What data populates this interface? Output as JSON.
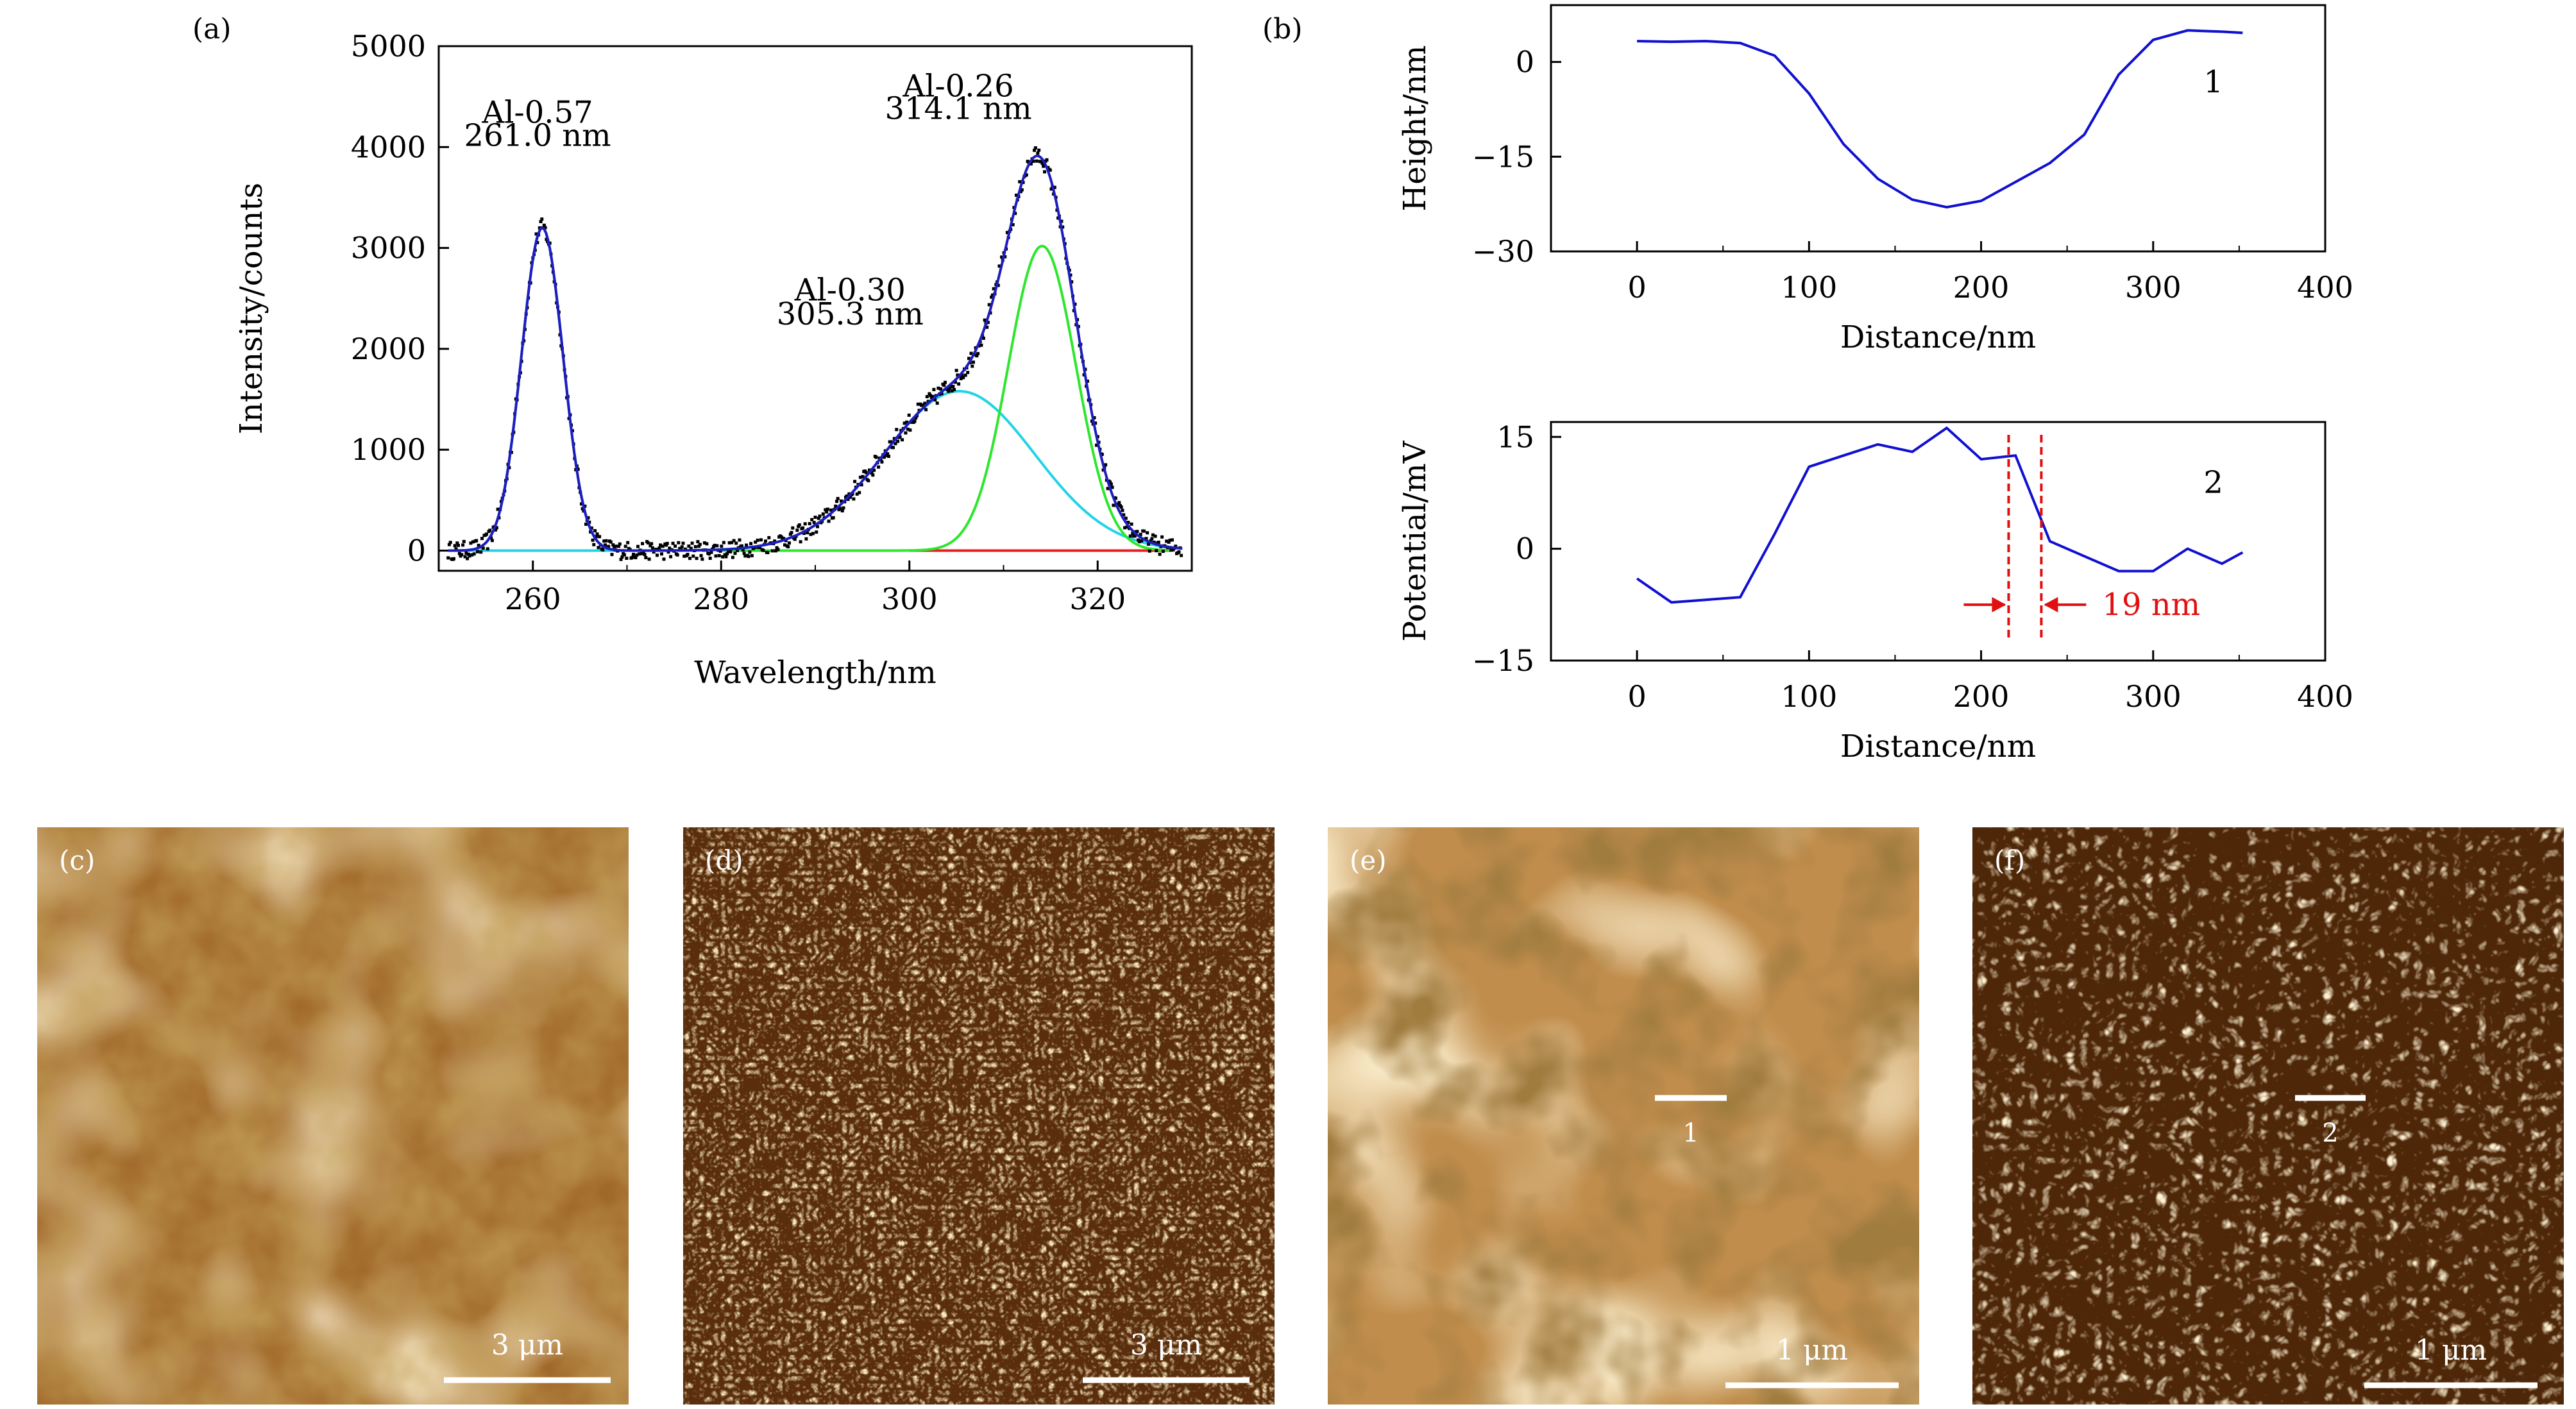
{
  "chart_data": [
    {
      "panel": "(a)",
      "type": "line",
      "xlabel": "Wavelength/nm",
      "ylabel": "Intensity/counts",
      "xlim": [
        250,
        330
      ],
      "ylim": [
        -200,
        5000
      ],
      "xticks": [
        260,
        280,
        300,
        320
      ],
      "yticks": [
        0,
        1000,
        2000,
        3000,
        4000,
        5000
      ],
      "peaks": [
        {
          "name": "Al-0.57",
          "center": 261.0,
          "center_label": "261.0 nm",
          "amplitude": 3200,
          "sigma": 2.2,
          "color": "#1e50e6"
        },
        {
          "name": "Al-0.30",
          "center": 305.3,
          "center_label": "305.3 nm",
          "amplitude": 1580,
          "sigma": 8.0,
          "color": "#22d3e6"
        },
        {
          "name": "Al-0.26",
          "center": 314.1,
          "center_label": "314.1 nm",
          "amplitude": 3020,
          "sigma": 3.6,
          "color": "#2ee62e"
        }
      ],
      "series": [
        {
          "name": "measured data",
          "color": "#000000"
        },
        {
          "name": "cumulative fit",
          "color": "#1e1ebe"
        },
        {
          "name": "baseline",
          "color": "#e61e1e"
        }
      ]
    },
    {
      "panel": "(b)",
      "subplot": "1",
      "type": "line",
      "xlabel": "Distance/nm",
      "ylabel": "Height/nm",
      "xlim": [
        -50,
        400
      ],
      "ylim": [
        -30,
        9
      ],
      "xticks": [
        0,
        100,
        200,
        300,
        400
      ],
      "yticks": [
        0,
        -15,
        -30
      ],
      "x": [
        0,
        20,
        40,
        60,
        80,
        100,
        120,
        140,
        160,
        180,
        200,
        220,
        240,
        260,
        280,
        300,
        320,
        340,
        352
      ],
      "y": [
        3.3,
        3.2,
        3.3,
        3.0,
        1.0,
        -5.0,
        -13.0,
        -18.5,
        -21.8,
        -23.0,
        -22.0,
        -19.0,
        -16.0,
        -11.5,
        -2.0,
        3.5,
        5.0,
        4.8,
        4.6
      ],
      "label": "1",
      "color": "#1010d0"
    },
    {
      "panel": "(b)",
      "subplot": "2",
      "type": "line",
      "xlabel": "Distance/nm",
      "ylabel": "Potential/mV",
      "xlim": [
        -50,
        400
      ],
      "ylim": [
        -15,
        17
      ],
      "xticks": [
        0,
        100,
        200,
        300,
        400
      ],
      "yticks": [
        15,
        0,
        -15
      ],
      "x": [
        0,
        20,
        60,
        80,
        100,
        120,
        140,
        160,
        180,
        200,
        220,
        240,
        260,
        280,
        300,
        320,
        340,
        352
      ],
      "y": [
        -4.0,
        -7.2,
        -6.5,
        2.0,
        11.0,
        12.5,
        14.0,
        13.0,
        16.2,
        12.0,
        12.5,
        1.0,
        -1.0,
        -3.0,
        -3.0,
        0.0,
        -2.0,
        -0.5
      ],
      "label": "2",
      "color": "#1010d0",
      "dashed_lines_x": [
        216,
        235
      ],
      "width_annotation": "19 nm",
      "annotation_color": "#e01010"
    }
  ],
  "images": [
    {
      "label": "(c)",
      "scale": "3 μm"
    },
    {
      "label": "(d)",
      "scale": "3 μm"
    },
    {
      "label": "(e)",
      "scale": "1 μm",
      "marker": "1"
    },
    {
      "label": "(f)",
      "scale": "1 μm",
      "marker": "2"
    }
  ]
}
